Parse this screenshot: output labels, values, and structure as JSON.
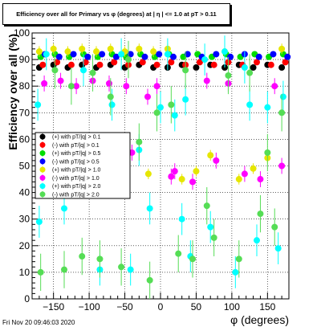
{
  "title": "Efficiency over all for Primary vs φ (degrees) at | η | <= 1.0 at pT > 0.11",
  "timestamp": "Fri Nov 20 09:46:03 2020",
  "chart_data": {
    "type": "scatter",
    "xlabel": "φ (degrees)",
    "ylabel": "Efficiency over all (%)",
    "xlim": [
      -180,
      180
    ],
    "ylim": [
      0,
      100
    ],
    "xticks": [
      -150,
      -100,
      -50,
      0,
      50,
      100,
      150
    ],
    "yticks": [
      0,
      10,
      20,
      30,
      40,
      50,
      60,
      70,
      80,
      90,
      100
    ],
    "grid": true,
    "legend_position": "left, middle",
    "series": [
      {
        "name": "(+) with pT/|q| > 0.1",
        "color": "#000000",
        "marker": "circle",
        "err": 1,
        "x": [
          -170,
          -150,
          -130,
          -110,
          -90,
          -70,
          -50,
          -30,
          -10,
          10,
          30,
          50,
          70,
          90,
          110,
          130,
          150,
          170
        ],
        "y": [
          87,
          88,
          87,
          88,
          87,
          88,
          87,
          88,
          87,
          87,
          88,
          87,
          88,
          87,
          88,
          87,
          88,
          87
        ]
      },
      {
        "name": "(-) with pT/|q| > 0.1",
        "color": "#ff0000",
        "marker": "circle",
        "err": 1,
        "x": [
          -165,
          -145,
          -125,
          -105,
          -85,
          -65,
          -45,
          -25,
          -5,
          15,
          35,
          55,
          75,
          95,
          115,
          135,
          155,
          175
        ],
        "y": [
          88,
          89,
          88,
          89,
          88,
          89,
          88,
          89,
          88,
          89,
          88,
          89,
          88,
          89,
          88,
          89,
          88,
          89
        ]
      },
      {
        "name": "(+) with pT/|q| > 0.5",
        "color": "#00dd00",
        "marker": "circle",
        "err": 1,
        "x": [
          -168,
          -148,
          -128,
          -108,
          -88,
          -68,
          -48,
          -28,
          -8,
          12,
          32,
          52,
          72,
          92,
          112,
          132,
          152,
          172
        ],
        "y": [
          91,
          92,
          91,
          92,
          91,
          92,
          91,
          92,
          91,
          92,
          91,
          92,
          91,
          92,
          91,
          92,
          91,
          92
        ]
      },
      {
        "name": "(-) with pT/|q| > 0.5",
        "color": "#0000ff",
        "marker": "circle",
        "err": 1,
        "x": [
          -162,
          -142,
          -122,
          -102,
          -82,
          -62,
          -42,
          -22,
          -2,
          18,
          38,
          58,
          78,
          98,
          118,
          138,
          158,
          178
        ],
        "y": [
          92,
          91,
          92,
          91,
          92,
          91,
          92,
          91,
          92,
          91,
          92,
          91,
          92,
          91,
          92,
          91,
          92,
          91
        ]
      },
      {
        "name": "(+) with pT/|q| > 1.0",
        "color": "#e6e600",
        "marker": "circle",
        "err": 2,
        "x": [
          -170,
          -150,
          -130,
          -110,
          -90,
          -70,
          -50,
          -30,
          -17,
          -10,
          10,
          30,
          50,
          70,
          90,
          110,
          130,
          150,
          170
        ],
        "y": [
          93,
          94,
          93,
          94,
          93,
          94,
          93,
          94,
          47,
          93,
          94,
          45,
          48,
          54,
          93,
          45,
          49,
          53,
          94
        ]
      },
      {
        "name": "(-) with pT/|q| > 1.0",
        "color": "#ff00ff",
        "marker": "circle",
        "err": 3,
        "x": [
          -163,
          -140,
          -118,
          -95,
          -72,
          -48,
          -40,
          -18,
          -5,
          15,
          20,
          45,
          65,
          78,
          95,
          118,
          140,
          160,
          170
        ],
        "y": [
          81,
          82,
          80,
          82,
          81,
          80,
          55,
          76,
          80,
          46,
          48,
          44,
          82,
          52,
          81,
          47,
          45,
          80,
          50
        ]
      },
      {
        "name": "(+) with pT/|q| > 2.0",
        "color": "#00ffff",
        "marker": "circle",
        "err": 6,
        "x": [
          -172,
          -170,
          -160,
          -135,
          -108,
          -85,
          -68,
          -55,
          -42,
          -30,
          -15,
          0,
          10,
          20,
          30,
          35,
          42,
          62,
          70,
          90,
          105,
          118,
          125,
          135,
          150,
          165,
          172
        ],
        "y": [
          73,
          29,
          92,
          34,
          86,
          11,
          73,
          92,
          11,
          56,
          34,
          72,
          92,
          69,
          30,
          75,
          16,
          90,
          27,
          93,
          10,
          87,
          73,
          22,
          72,
          19,
          76
        ]
      },
      {
        "name": "(-) with pT/|q| > 2.0",
        "color": "#55dd55",
        "marker": "circle",
        "err": 7,
        "x": [
          -168,
          -148,
          -135,
          -125,
          -110,
          -95,
          -85,
          -70,
          -55,
          -45,
          -30,
          -15,
          -5,
          15,
          25,
          35,
          45,
          65,
          75,
          95,
          110,
          125,
          140,
          150,
          160,
          170
        ],
        "y": [
          10,
          86,
          11,
          80,
          16,
          85,
          15,
          76,
          12,
          90,
          59,
          7,
          70,
          73,
          17,
          86,
          15,
          35,
          23,
          84,
          15,
          85,
          32,
          55,
          27,
          70
        ]
      }
    ]
  }
}
